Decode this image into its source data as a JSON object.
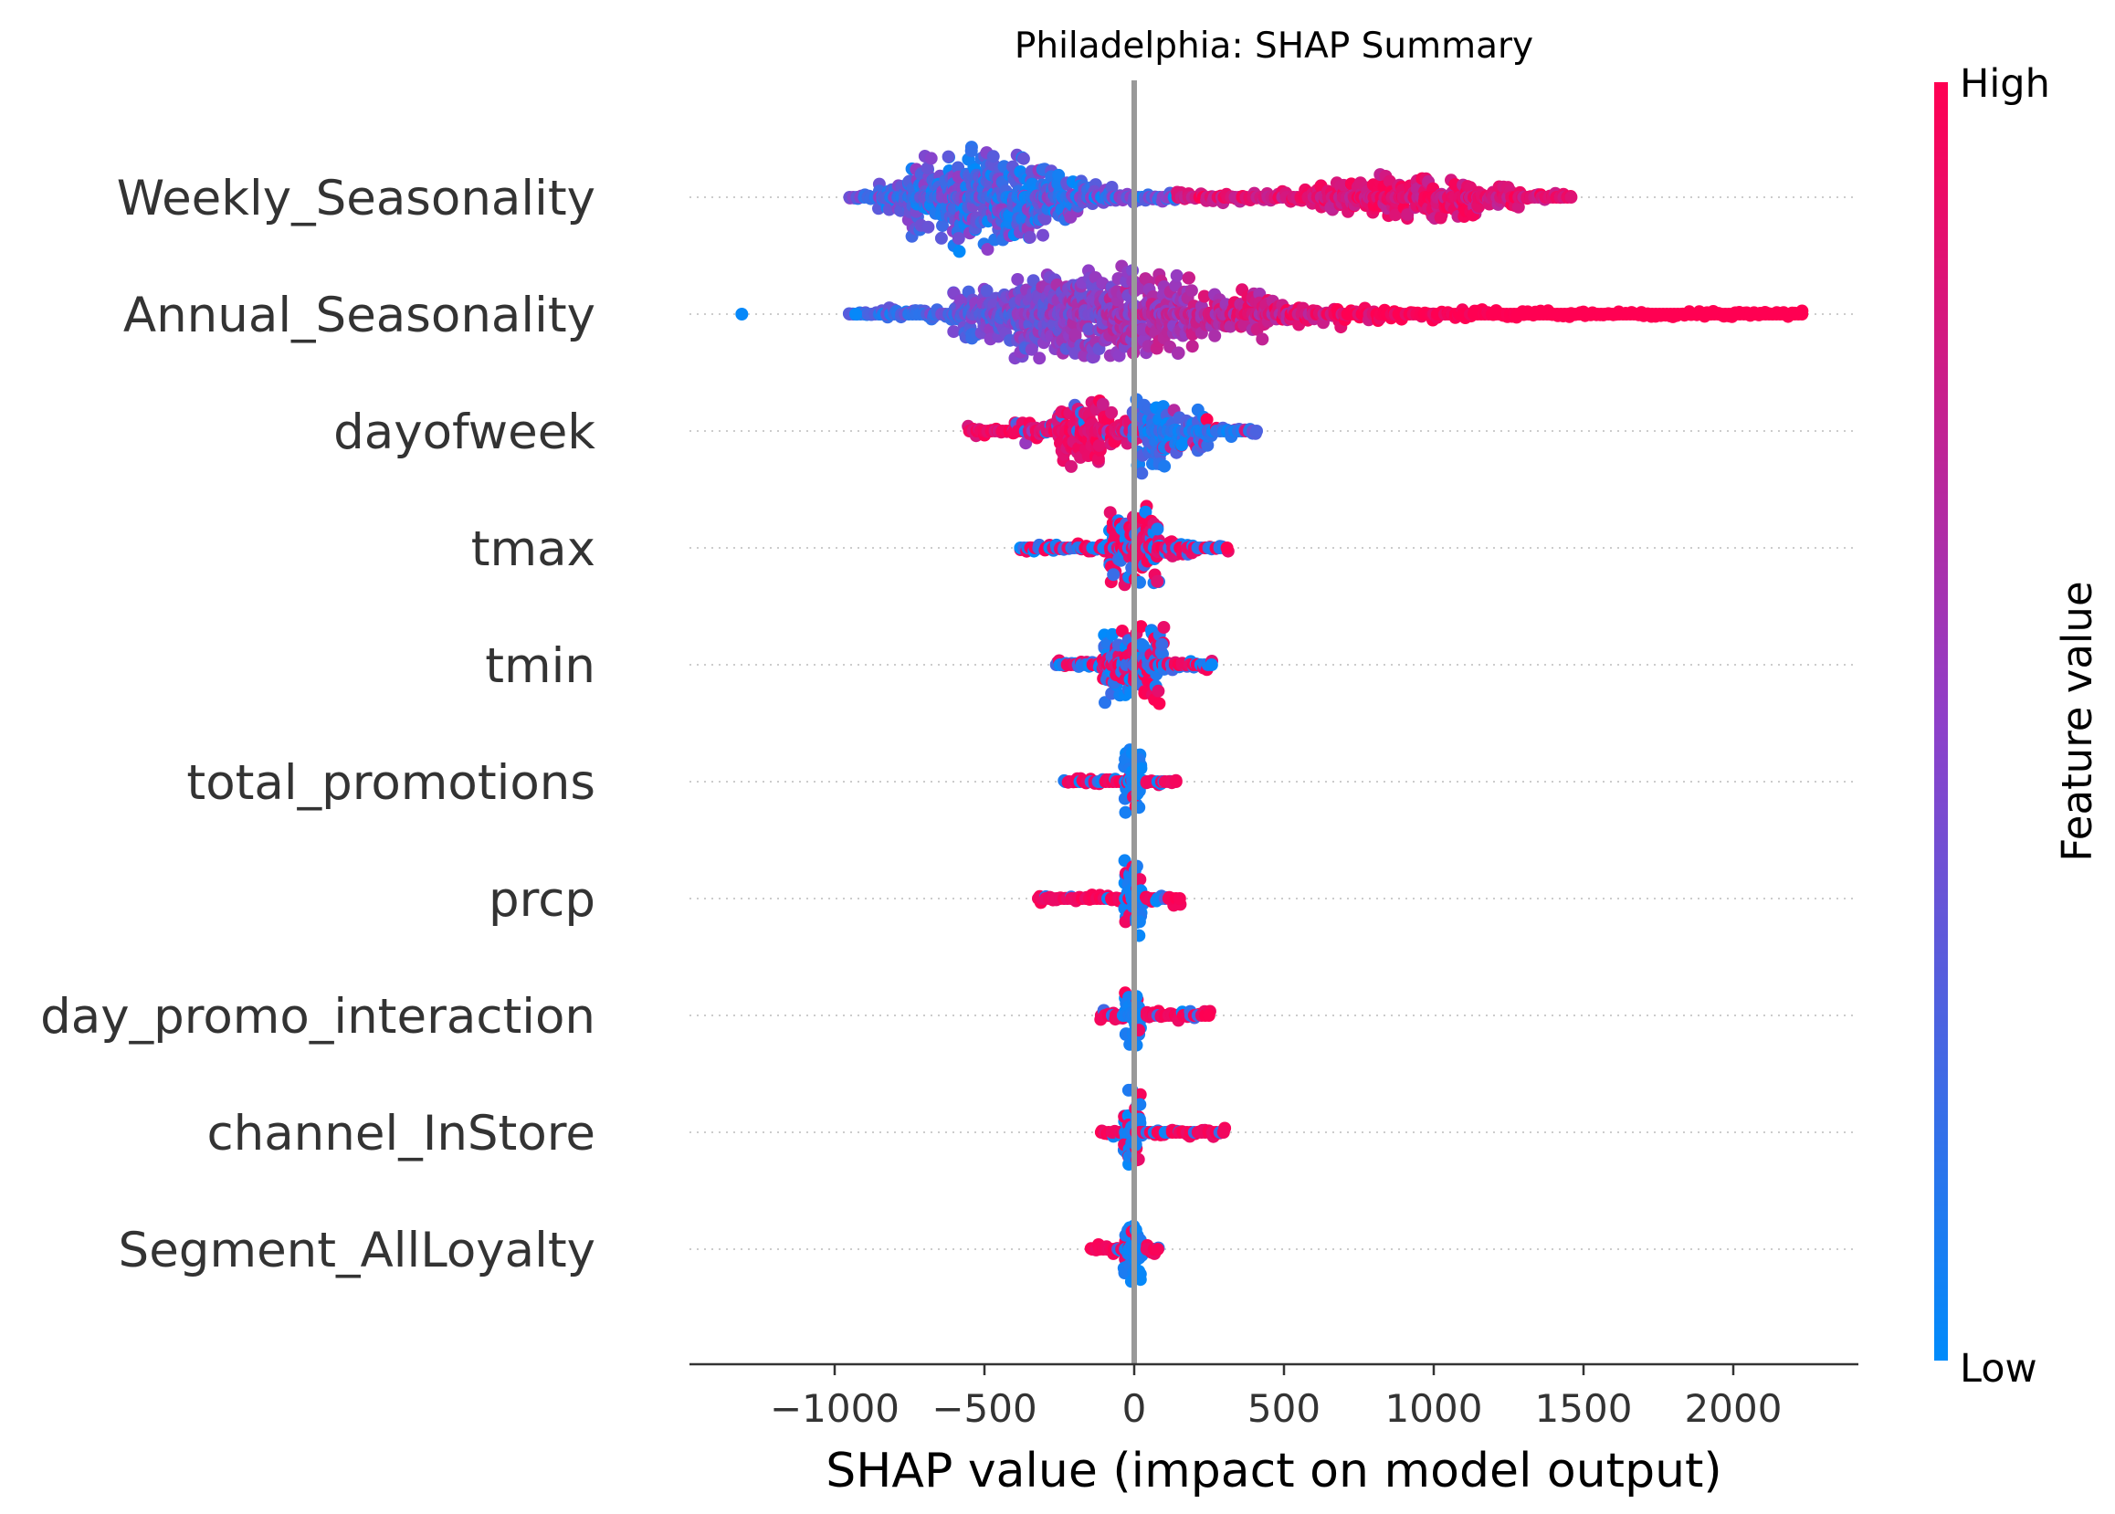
{
  "chart_data": {
    "type": "scatter",
    "subtype": "shap-beeswarm",
    "title": "Philadelphia: SHAP Summary",
    "xlabel": "SHAP value (impact on model output)",
    "xticks": [
      -1000,
      -500,
      0,
      500,
      1000,
      1500,
      2000
    ],
    "xlim": [
      -1480,
      2420
    ],
    "colorbar": {
      "label": "Feature value",
      "high_label": "High",
      "low_label": "Low",
      "high_color": "#ff0052",
      "low_color": "#008bfb"
    },
    "features": [
      {
        "name": "Weekly_Seasonality",
        "min": -950,
        "max": 1470,
        "segments": [
          [
            -950,
            -850,
            0.08
          ],
          [
            -850,
            -750,
            0.35
          ],
          [
            -750,
            -600,
            0.8
          ],
          [
            -600,
            -450,
            1.0
          ],
          [
            -450,
            -300,
            0.9
          ],
          [
            -300,
            -180,
            0.55
          ],
          [
            -180,
            -60,
            0.3
          ],
          [
            -60,
            60,
            0.12
          ],
          [
            60,
            300,
            0.1
          ],
          [
            300,
            600,
            0.14
          ],
          [
            600,
            800,
            0.3
          ],
          [
            800,
            1000,
            0.45
          ],
          [
            1000,
            1150,
            0.42
          ],
          [
            1150,
            1300,
            0.25
          ],
          [
            1300,
            1470,
            0.08
          ]
        ],
        "color_mode": "split",
        "color_pivot": 0.45
      },
      {
        "name": "Annual_Seasonality",
        "min": -1310,
        "max": 2240,
        "segments": [
          [
            -950,
            -850,
            0.08
          ],
          [
            -850,
            -600,
            0.14
          ],
          [
            -600,
            -400,
            0.55
          ],
          [
            -400,
            -200,
            0.85
          ],
          [
            -200,
            0,
            0.95
          ],
          [
            0,
            200,
            0.75
          ],
          [
            200,
            450,
            0.45
          ],
          [
            450,
            700,
            0.25
          ],
          [
            700,
            1000,
            0.14
          ],
          [
            1000,
            1400,
            0.09
          ],
          [
            1400,
            2240,
            0.05
          ]
        ],
        "outliers": [
          -1310,
          -930
        ],
        "color_mode": "gradient"
      },
      {
        "name": "dayofweek",
        "min": -550,
        "max": 420,
        "segments": [
          [
            -550,
            -400,
            0.1
          ],
          [
            -400,
            -250,
            0.22
          ],
          [
            -250,
            -100,
            0.7
          ],
          [
            -100,
            0,
            0.35
          ],
          [
            0,
            100,
            0.8
          ],
          [
            100,
            250,
            0.45
          ],
          [
            250,
            420,
            0.12
          ]
        ],
        "color_mode": "split",
        "color_pivot": 0.55
      },
      {
        "name": "tmax",
        "min": -380,
        "max": 320,
        "segments": [
          [
            -380,
            -200,
            0.08
          ],
          [
            -200,
            -80,
            0.15
          ],
          [
            -80,
            80,
            0.75
          ],
          [
            80,
            200,
            0.2
          ],
          [
            200,
            320,
            0.06
          ]
        ],
        "color_mode": "mixed"
      },
      {
        "name": "tmin",
        "min": -260,
        "max": 260,
        "segments": [
          [
            -260,
            -100,
            0.1
          ],
          [
            -100,
            100,
            0.75
          ],
          [
            100,
            260,
            0.12
          ]
        ],
        "color_mode": "mixed"
      },
      {
        "name": "total_promotions",
        "min": -230,
        "max": 140,
        "segments": [
          [
            -230,
            -30,
            0.07
          ],
          [
            -30,
            30,
            0.75
          ],
          [
            30,
            140,
            0.1
          ]
        ],
        "color_mode": "promo"
      },
      {
        "name": "prcp",
        "min": -320,
        "max": 160,
        "segments": [
          [
            -320,
            -30,
            0.08
          ],
          [
            -30,
            30,
            0.8
          ],
          [
            30,
            160,
            0.15
          ]
        ],
        "color_mode": "promo"
      },
      {
        "name": "day_promo_interaction",
        "min": -110,
        "max": 250,
        "segments": [
          [
            -110,
            -30,
            0.1
          ],
          [
            -30,
            30,
            0.7
          ],
          [
            30,
            250,
            0.1
          ]
        ],
        "color_mode": "promo"
      },
      {
        "name": "channel_InStore",
        "min": -110,
        "max": 310,
        "segments": [
          [
            -110,
            -30,
            0.08
          ],
          [
            -30,
            30,
            0.9
          ],
          [
            30,
            310,
            0.1
          ]
        ],
        "color_mode": "promo"
      },
      {
        "name": "Segment_AllLoyalty",
        "min": -140,
        "max": 80,
        "segments": [
          [
            -140,
            -30,
            0.1
          ],
          [
            -30,
            30,
            0.65
          ],
          [
            30,
            80,
            0.15
          ]
        ],
        "color_mode": "promo"
      }
    ]
  }
}
